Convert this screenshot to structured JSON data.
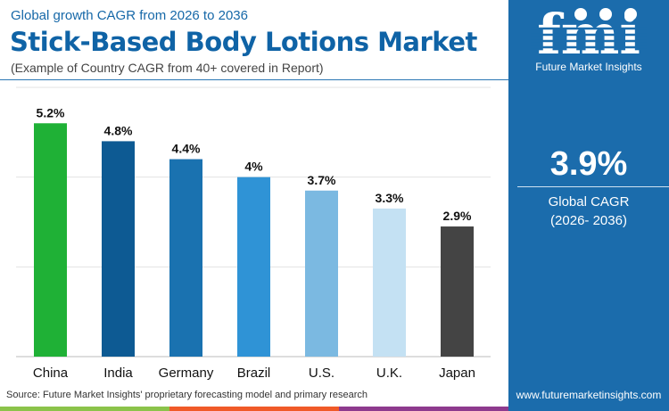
{
  "header": {
    "subtitle": "Global growth CAGR from 2026 to 2036",
    "title": "Stick-Based Body Lotions Market",
    "note": "(Example of Country CAGR from 40+ covered in Report)"
  },
  "chart_data": {
    "type": "bar",
    "categories": [
      "China",
      "India",
      "Germany",
      "Brazil",
      "U.S.",
      "U.K.",
      "Japan"
    ],
    "values": [
      5.2,
      4.8,
      4.4,
      4,
      3.7,
      3.3,
      2.9
    ],
    "labels": [
      "5.2%",
      "4.8%",
      "4.4%",
      "4%",
      "3.7%",
      "3.3%",
      "2.9%"
    ],
    "colors": [
      "#1fb136",
      "#0d5a93",
      "#1a72b0",
      "#2f93d6",
      "#7bb9e1",
      "#c4e1f3",
      "#444444"
    ],
    "ylim": [
      0,
      6
    ],
    "grid": true,
    "unit": "%"
  },
  "footer": {
    "source": "Source: Future Market Insights' proprietary forecasting model and primary research",
    "stripe_colors": [
      "#8bc34a",
      "#f05a28",
      "#8e3a8e"
    ]
  },
  "panel": {
    "brand": "Future Market Insights",
    "logo_text": "fmi",
    "value": "3.9%",
    "label": "Global CAGR",
    "period": "(2026- 2036)",
    "url": "www.futuremarketinsights.com",
    "bg": "#1b6cac"
  }
}
